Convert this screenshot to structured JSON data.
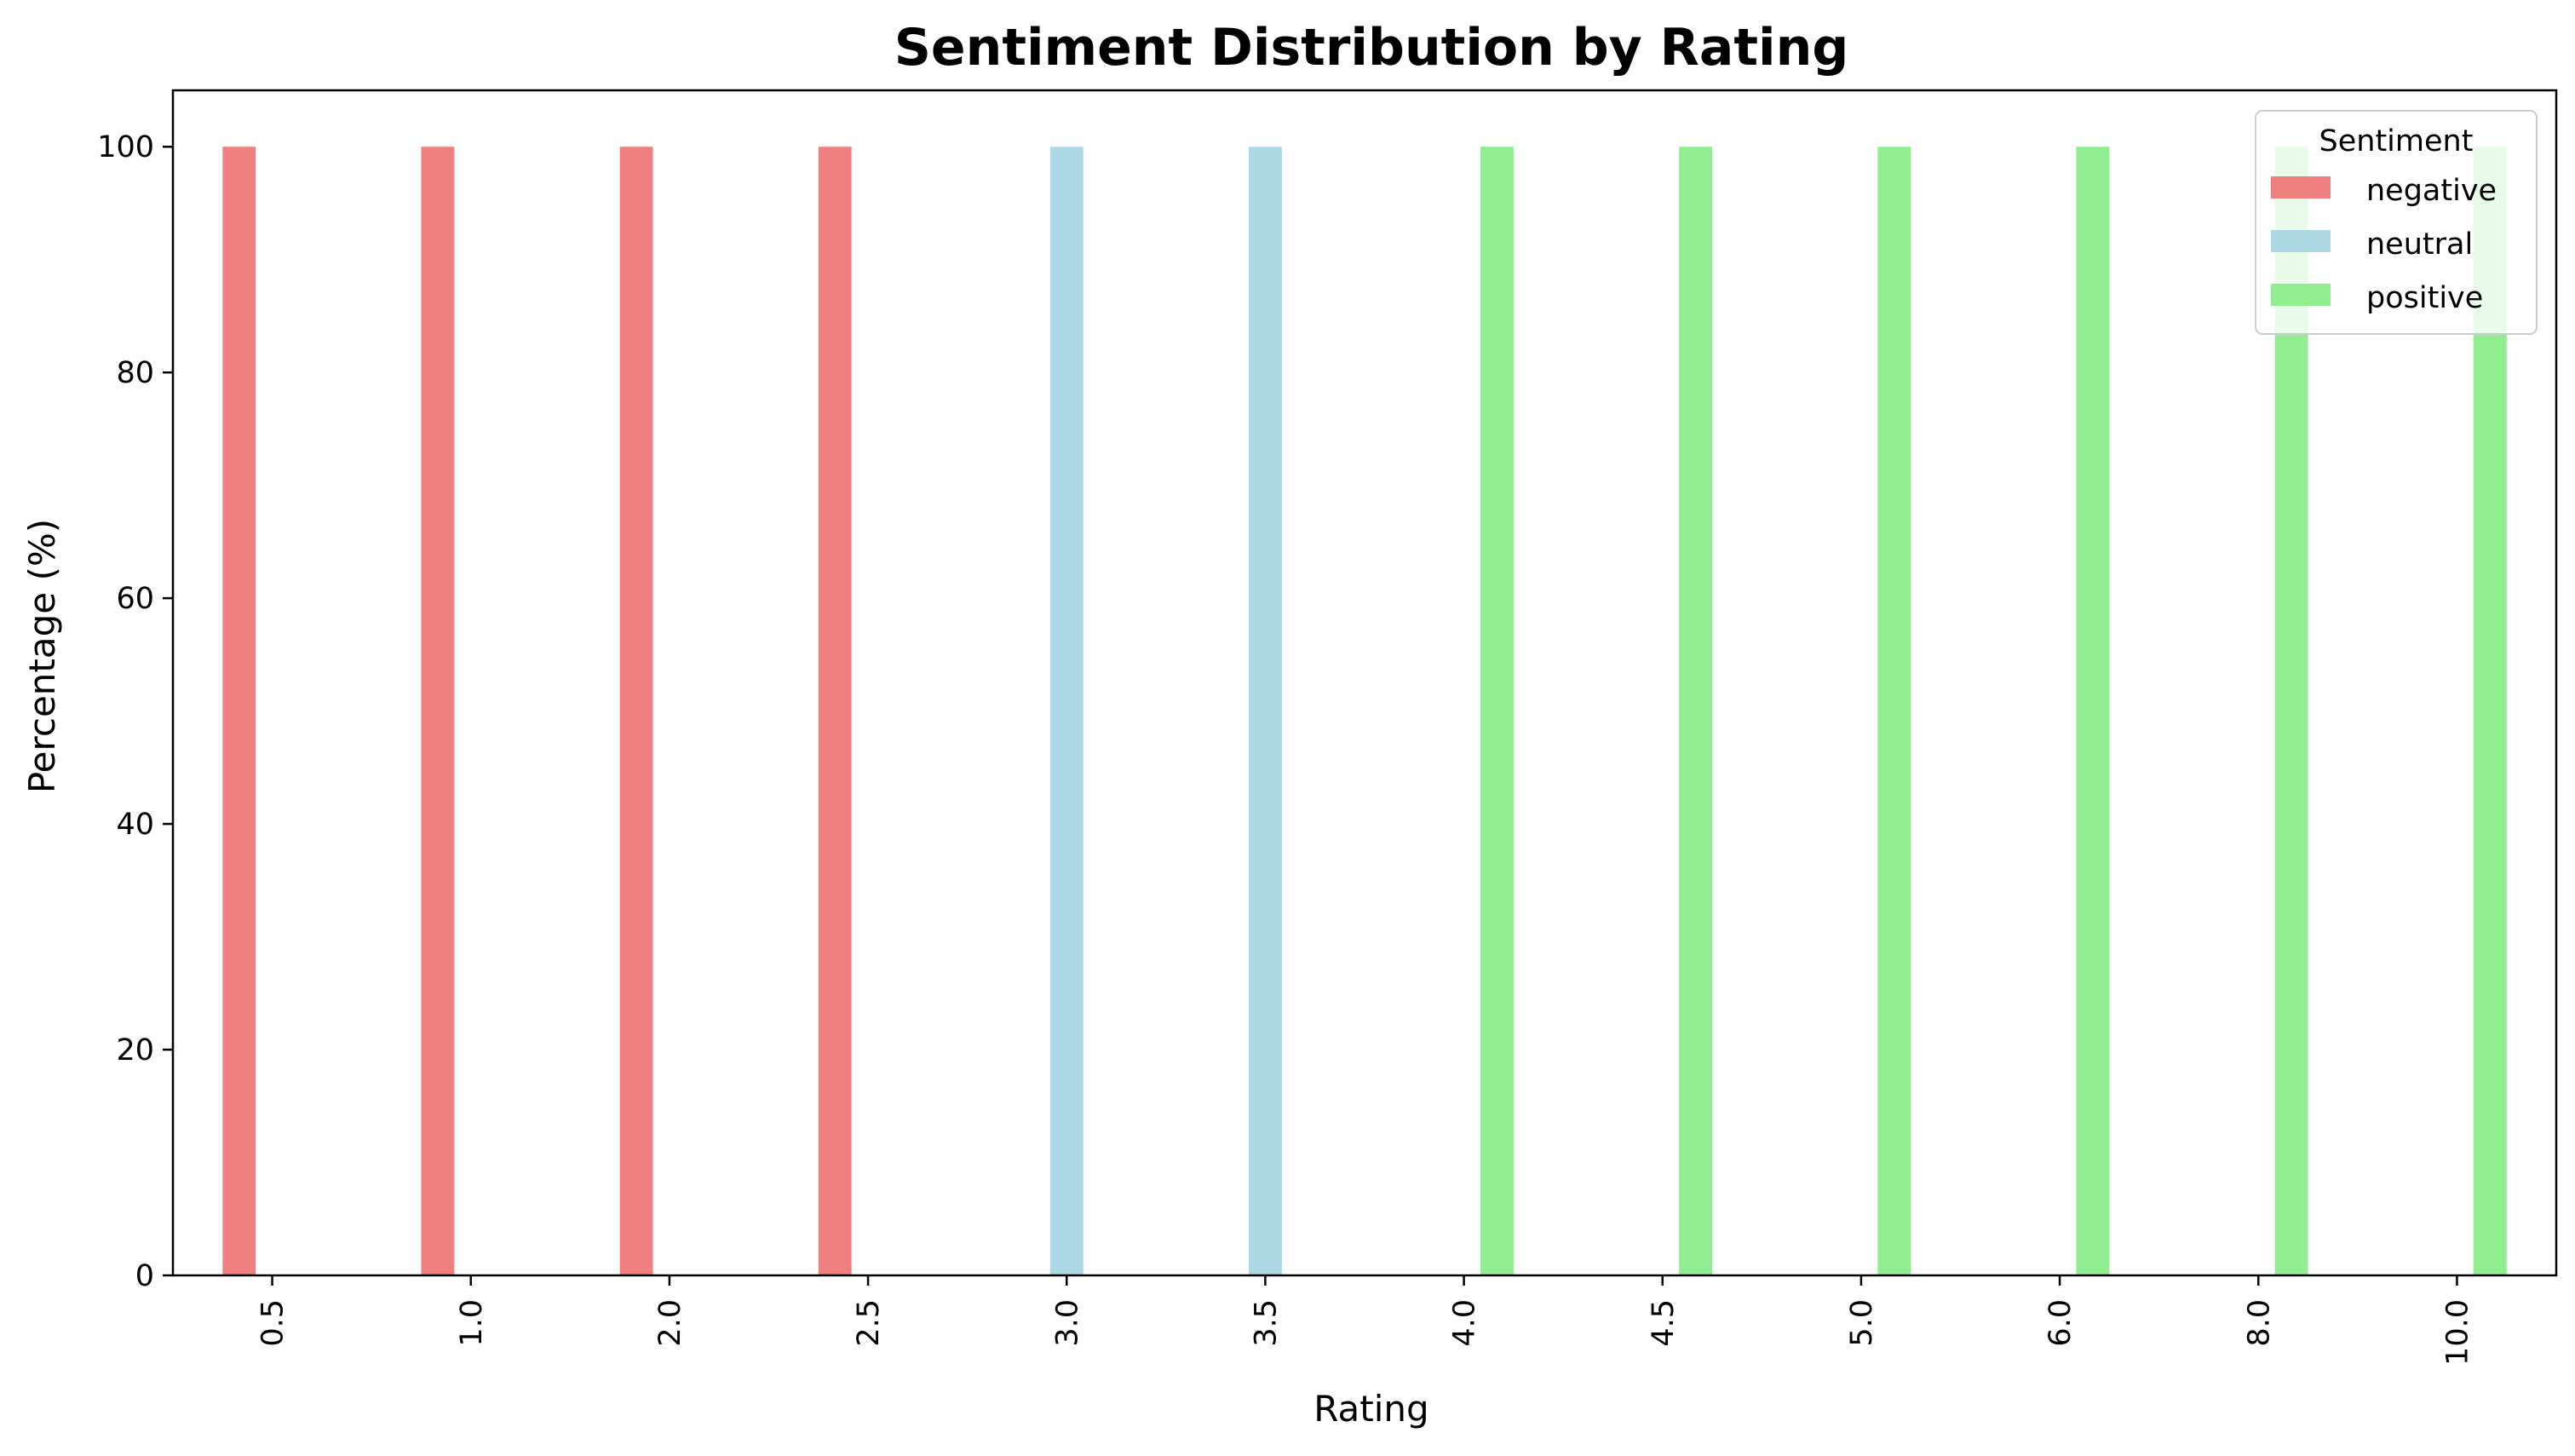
{
  "chart_data": {
    "type": "bar",
    "title": "Sentiment Distribution by Rating",
    "xlabel": "Rating",
    "ylabel": "Percentage (%)",
    "categories": [
      "0.5",
      "1.0",
      "2.0",
      "2.5",
      "3.0",
      "3.5",
      "4.0",
      "4.5",
      "5.0",
      "6.0",
      "8.0",
      "10.0"
    ],
    "yticks": [
      "0",
      "20",
      "40",
      "60",
      "80",
      "100"
    ],
    "ylim": [
      0,
      105
    ],
    "grid": false,
    "series": [
      {
        "name": "negative",
        "color": "#f08080",
        "values": [
          100,
          100,
          100,
          100,
          0,
          0,
          0,
          0,
          0,
          0,
          0,
          0
        ]
      },
      {
        "name": "neutral",
        "color": "#add8e6",
        "values": [
          0,
          0,
          0,
          0,
          100,
          100,
          0,
          0,
          0,
          0,
          0,
          0
        ]
      },
      {
        "name": "positive",
        "color": "#90ee90",
        "values": [
          0,
          0,
          0,
          0,
          0,
          0,
          100,
          100,
          100,
          100,
          100,
          100
        ]
      }
    ],
    "legend": {
      "title": "Sentiment",
      "placement": "top-right"
    }
  }
}
